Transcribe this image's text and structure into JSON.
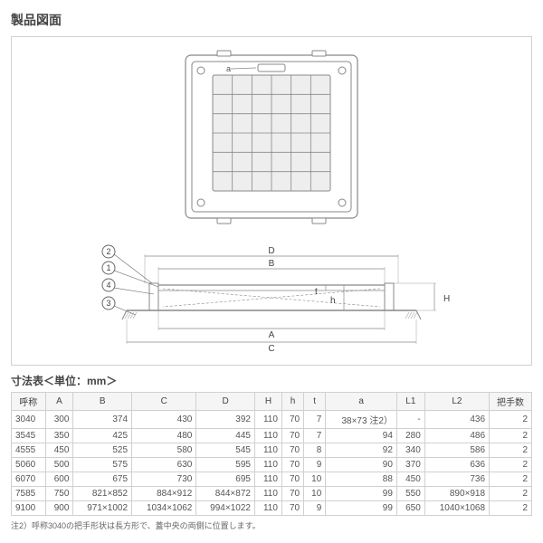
{
  "title": "製品図面",
  "diagram": {
    "top": {
      "stroke": "#888888",
      "fill": "#ffffff",
      "grid_fill": "#eeeeee",
      "label_a": "a"
    },
    "side": {
      "stroke": "#888888",
      "callout_stroke": "#666666",
      "callouts": [
        "1",
        "2",
        "3",
        "4"
      ],
      "dims": [
        "A",
        "B",
        "C",
        "D",
        "H",
        "h",
        "t"
      ]
    }
  },
  "table": {
    "title": "寸法表＜単位：mm＞",
    "columns": [
      "呼称",
      "A",
      "B",
      "C",
      "D",
      "H",
      "h",
      "t",
      "a",
      "L1",
      "L2",
      "把手数"
    ],
    "rows": [
      [
        "3040",
        "300",
        "374",
        "430",
        "392",
        "110",
        "70",
        "7",
        "38×73 注2）",
        "-",
        "436",
        "2"
      ],
      [
        "3545",
        "350",
        "425",
        "480",
        "445",
        "110",
        "70",
        "7",
        "94",
        "280",
        "486",
        "2"
      ],
      [
        "4555",
        "450",
        "525",
        "580",
        "545",
        "110",
        "70",
        "8",
        "92",
        "340",
        "586",
        "2"
      ],
      [
        "5060",
        "500",
        "575",
        "630",
        "595",
        "110",
        "70",
        "9",
        "90",
        "370",
        "636",
        "2"
      ],
      [
        "6070",
        "600",
        "675",
        "730",
        "695",
        "110",
        "70",
        "10",
        "88",
        "450",
        "736",
        "2"
      ],
      [
        "7585",
        "750",
        "821×852",
        "884×912",
        "844×872",
        "110",
        "70",
        "10",
        "99",
        "550",
        "890×918",
        "2"
      ],
      [
        "9100",
        "900",
        "971×1002",
        "1034×1062",
        "994×1022",
        "110",
        "70",
        "9",
        "99",
        "650",
        "1040×1068",
        "2"
      ]
    ]
  },
  "note": "注2）呼称3040の把手形状は長方形で、蓋中央の両側に位置します。"
}
